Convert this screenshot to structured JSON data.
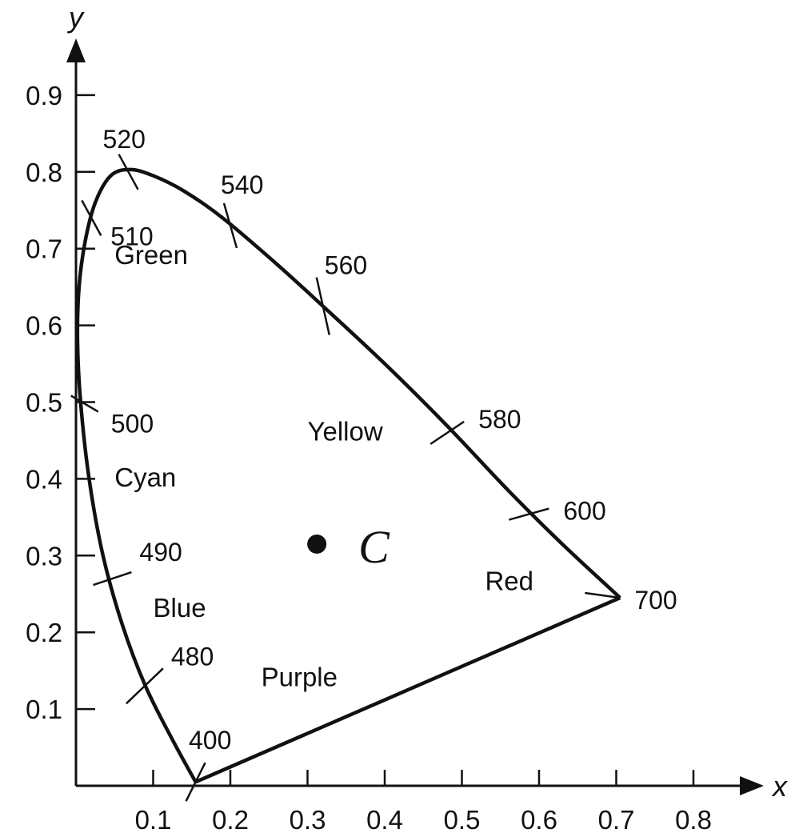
{
  "axes": {
    "x_label": "x",
    "y_label": "y",
    "x_ticks": [
      "0.1",
      "0.2",
      "0.3",
      "0.4",
      "0.5",
      "0.6",
      "0.7",
      "0.8"
    ],
    "y_ticks": [
      "0.1",
      "0.2",
      "0.3",
      "0.4",
      "0.5",
      "0.6",
      "0.7",
      "0.8",
      "0.9"
    ]
  },
  "chart_data": {
    "type": "line",
    "xlabel": "x",
    "ylabel": "y",
    "xlim": [
      0,
      0.85
    ],
    "ylim": [
      0,
      0.95
    ],
    "locus": [
      [
        0.155,
        0.005
      ],
      [
        0.125,
        0.06
      ],
      [
        0.09,
        0.13
      ],
      [
        0.06,
        0.21
      ],
      [
        0.035,
        0.3
      ],
      [
        0.017,
        0.4
      ],
      [
        0.006,
        0.5
      ],
      [
        0.002,
        0.58
      ],
      [
        0.004,
        0.65
      ],
      [
        0.012,
        0.71
      ],
      [
        0.025,
        0.76
      ],
      [
        0.045,
        0.795
      ],
      [
        0.07,
        0.803
      ],
      [
        0.1,
        0.795
      ],
      [
        0.14,
        0.775
      ],
      [
        0.19,
        0.74
      ],
      [
        0.26,
        0.68
      ],
      [
        0.32,
        0.625
      ],
      [
        0.4,
        0.55
      ],
      [
        0.48,
        0.47
      ],
      [
        0.56,
        0.385
      ],
      [
        0.63,
        0.315
      ],
      [
        0.705,
        0.245
      ]
    ],
    "purple_line": [
      [
        0.705,
        0.245
      ],
      [
        0.155,
        0.005
      ]
    ],
    "wavelength_marks": [
      {
        "label": "400",
        "x": 0.155,
        "y": 0.005
      },
      {
        "label": "480",
        "x": 0.09,
        "y": 0.13
      },
      {
        "label": "490",
        "x": 0.045,
        "y": 0.27
      },
      {
        "label": "500",
        "x": 0.006,
        "y": 0.5
      },
      {
        "label": "510",
        "x": 0.02,
        "y": 0.74
      },
      {
        "label": "520",
        "x": 0.07,
        "y": 0.8
      },
      {
        "label": "540",
        "x": 0.2,
        "y": 0.73
      },
      {
        "label": "560",
        "x": 0.32,
        "y": 0.625
      },
      {
        "label": "580",
        "x": 0.48,
        "y": 0.46
      },
      {
        "label": "600",
        "x": 0.59,
        "y": 0.355
      },
      {
        "label": "700",
        "x": 0.705,
        "y": 0.245
      }
    ],
    "regions": [
      {
        "label": "Green",
        "x": 0.05,
        "y": 0.68
      },
      {
        "label": "Cyan",
        "x": 0.05,
        "y": 0.39
      },
      {
        "label": "Blue",
        "x": 0.1,
        "y": 0.22
      },
      {
        "label": "Yellow",
        "x": 0.3,
        "y": 0.45
      },
      {
        "label": "Red",
        "x": 0.53,
        "y": 0.255
      },
      {
        "label": "Purple",
        "x": 0.24,
        "y": 0.13
      }
    ],
    "point_C": {
      "label": "C",
      "x": 0.31,
      "y": 0.316
    }
  }
}
